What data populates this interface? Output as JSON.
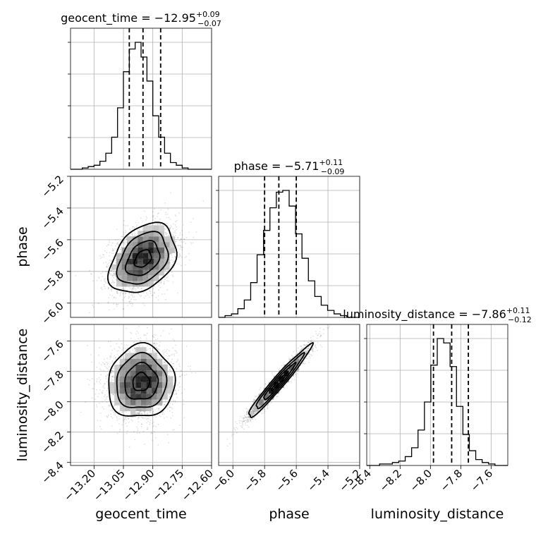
{
  "chart_data": {
    "type": "corner",
    "parameters": [
      {
        "name": "geocent_time",
        "xlabel": "geocent_time",
        "ylabel": "",
        "title": {
          "prefix": "geocent_time = −12.95",
          "plus": "+0.09",
          "minus": "−0.07"
        },
        "median": -12.95,
        "quantiles": [
          -13.02,
          -12.95,
          -12.86
        ],
        "range": [
          -13.32,
          -12.6
        ],
        "ticks": [
          -13.2,
          -13.05,
          -12.9,
          -12.75,
          -12.6
        ],
        "tick_labels": [
          "−13.20",
          "−13.05",
          "−12.90",
          "−12.75",
          "−12.60"
        ],
        "histogram": {
          "edges_range": [
            -13.32,
            -12.6
          ],
          "counts": [
            0,
            0,
            1,
            2,
            3,
            6,
            12,
            24,
            46,
            73,
            90,
            95,
            84,
            66,
            40,
            24,
            12,
            5,
            3,
            1,
            0,
            0,
            0,
            0
          ]
        }
      },
      {
        "name": "phase",
        "xlabel": "phase",
        "ylabel": "phase",
        "title": {
          "prefix": "phase = −5.71",
          "plus": "+0.11",
          "minus": "−0.09"
        },
        "median": -5.71,
        "quantiles": [
          -5.8,
          -5.71,
          -5.6
        ],
        "range": [
          -6.09,
          -5.2
        ],
        "ticks": [
          -6.0,
          -5.8,
          -5.6,
          -5.4,
          -5.2
        ],
        "tick_labels": [
          "−6.0",
          "−5.8",
          "−5.6",
          "−5.4",
          "−5.2"
        ],
        "histogram": {
          "edges_range": [
            -6.09,
            -5.2
          ],
          "counts": [
            0,
            1,
            2,
            5,
            10,
            20,
            36,
            50,
            63,
            72,
            73,
            64,
            48,
            34,
            21,
            12,
            7,
            4,
            2,
            1,
            0,
            0
          ]
        }
      },
      {
        "name": "luminosity_distance",
        "xlabel": "luminosity_distance",
        "ylabel": "luminosity_distance",
        "title": {
          "prefix": "luminosity_distance = −7.86",
          "plus": "+0.11",
          "minus": "−0.12"
        },
        "median": -7.86,
        "quantiles": [
          -7.98,
          -7.86,
          -7.75
        ],
        "range": [
          -8.42,
          -7.49
        ],
        "ticks": [
          -8.4,
          -8.2,
          -8.0,
          -7.8,
          -7.6
        ],
        "tick_labels": [
          "−8.4",
          "−8.2",
          "−8.0",
          "−7.8",
          "−7.6"
        ],
        "histogram": {
          "edges_range": [
            -8.42,
            -7.49
          ],
          "counts": [
            0,
            0,
            1,
            1,
            2,
            3,
            6,
            12,
            24,
            43,
            68,
            86,
            83,
            67,
            40,
            21,
            10,
            4,
            2,
            1,
            0,
            0
          ]
        }
      }
    ],
    "pairs": [
      {
        "x": "geocent_time",
        "y": "phase",
        "center": [
          -12.95,
          -5.72
        ],
        "sd": [
          0.085,
          0.11
        ],
        "corr": 0.35,
        "contour_levels_sigma": [
          0.5,
          1.0,
          1.5,
          2.0
        ]
      },
      {
        "x": "geocent_time",
        "y": "luminosity_distance",
        "center": [
          -12.96,
          -7.87
        ],
        "sd": [
          0.085,
          0.12
        ],
        "corr": 0.05,
        "contour_levels_sigma": [
          0.5,
          1.0,
          1.5,
          2.0
        ]
      },
      {
        "x": "phase",
        "y": "luminosity_distance",
        "center": [
          -5.71,
          -7.87
        ],
        "sd": [
          0.1,
          0.12
        ],
        "corr": 0.97,
        "contour_levels_sigma": [
          0.5,
          1.0,
          1.5,
          2.0
        ]
      }
    ],
    "grid": true,
    "colors": {
      "line": "#000000",
      "grid": "#b0b0b0",
      "points": "#000000"
    }
  }
}
